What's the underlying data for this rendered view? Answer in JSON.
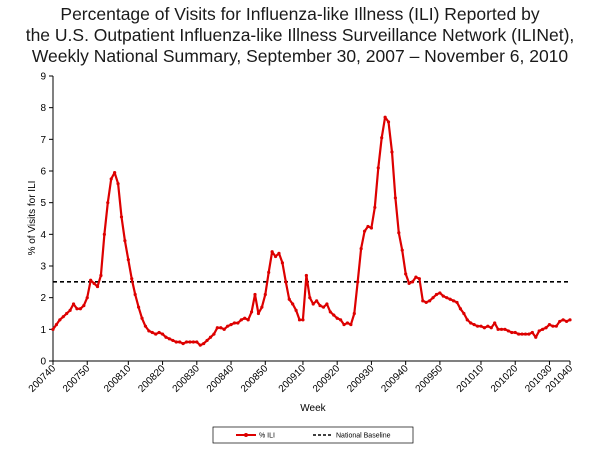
{
  "chart_data": {
    "type": "line",
    "title_lines": [
      "Percentage of Visits for Influenza-like Illness (ILI) Reported by",
      "the U.S. Outpatient Influenza-like Illness Surveillance Network (ILINet),",
      "Weekly National Summary, September 30, 2007 – November 6, 2010"
    ],
    "xlabel": "Week",
    "ylabel": "% of Visits for ILI",
    "ylim": [
      0,
      9
    ],
    "yticks": [
      "0",
      "1",
      "2",
      "3",
      "4",
      "5",
      "6",
      "7",
      "8",
      "9"
    ],
    "xtick_labels": [
      "200740",
      "200750",
      "200810",
      "200820",
      "200830",
      "200840",
      "200850",
      "200910",
      "200920",
      "200930",
      "200940",
      "200950",
      "201010",
      "201020",
      "201030",
      "201040"
    ],
    "grid": false,
    "legend_position": "bottom",
    "series": [
      {
        "name": "% ILI",
        "color": "#dd0000",
        "values": [
          1.0,
          1.15,
          1.3,
          1.4,
          1.5,
          1.6,
          1.8,
          1.65,
          1.65,
          1.75,
          2.0,
          2.55,
          2.45,
          2.35,
          2.7,
          4.0,
          5.0,
          5.75,
          5.95,
          5.6,
          4.55,
          3.8,
          3.2,
          2.6,
          2.1,
          1.7,
          1.35,
          1.1,
          0.95,
          0.9,
          0.85,
          0.9,
          0.85,
          0.75,
          0.7,
          0.65,
          0.6,
          0.6,
          0.55,
          0.6,
          0.6,
          0.6,
          0.6,
          0.5,
          0.55,
          0.65,
          0.75,
          0.85,
          1.05,
          1.05,
          1.0,
          1.1,
          1.15,
          1.2,
          1.2,
          1.3,
          1.35,
          1.3,
          1.55,
          2.1,
          1.5,
          1.7,
          2.1,
          2.8,
          3.45,
          3.3,
          3.4,
          3.1,
          2.5,
          1.95,
          1.8,
          1.6,
          1.3,
          1.3,
          2.7,
          2.0,
          1.8,
          1.9,
          1.75,
          1.7,
          1.8,
          1.55,
          1.45,
          1.35,
          1.3,
          1.15,
          1.2,
          1.15,
          1.5,
          2.5,
          3.55,
          4.1,
          4.25,
          4.2,
          4.85,
          6.1,
          7.05,
          7.7,
          7.55,
          6.6,
          5.15,
          4.05,
          3.5,
          2.75,
          2.45,
          2.5,
          2.65,
          2.6,
          1.9,
          1.85,
          1.9,
          2.0,
          2.1,
          2.15,
          2.05,
          2.0,
          1.95,
          1.9,
          1.85,
          1.65,
          1.5,
          1.3,
          1.2,
          1.15,
          1.1,
          1.1,
          1.05,
          1.1,
          1.05,
          1.2,
          1.0,
          1.0,
          1.0,
          0.95,
          0.9,
          0.9,
          0.85,
          0.85,
          0.85,
          0.85,
          0.9,
          0.75,
          0.95,
          1.0,
          1.05,
          1.15,
          1.1,
          1.1,
          1.25,
          1.3,
          1.25,
          1.3
        ]
      },
      {
        "name": "National Baseline",
        "color": "#000000",
        "values": [
          2.5
        ]
      }
    ]
  }
}
